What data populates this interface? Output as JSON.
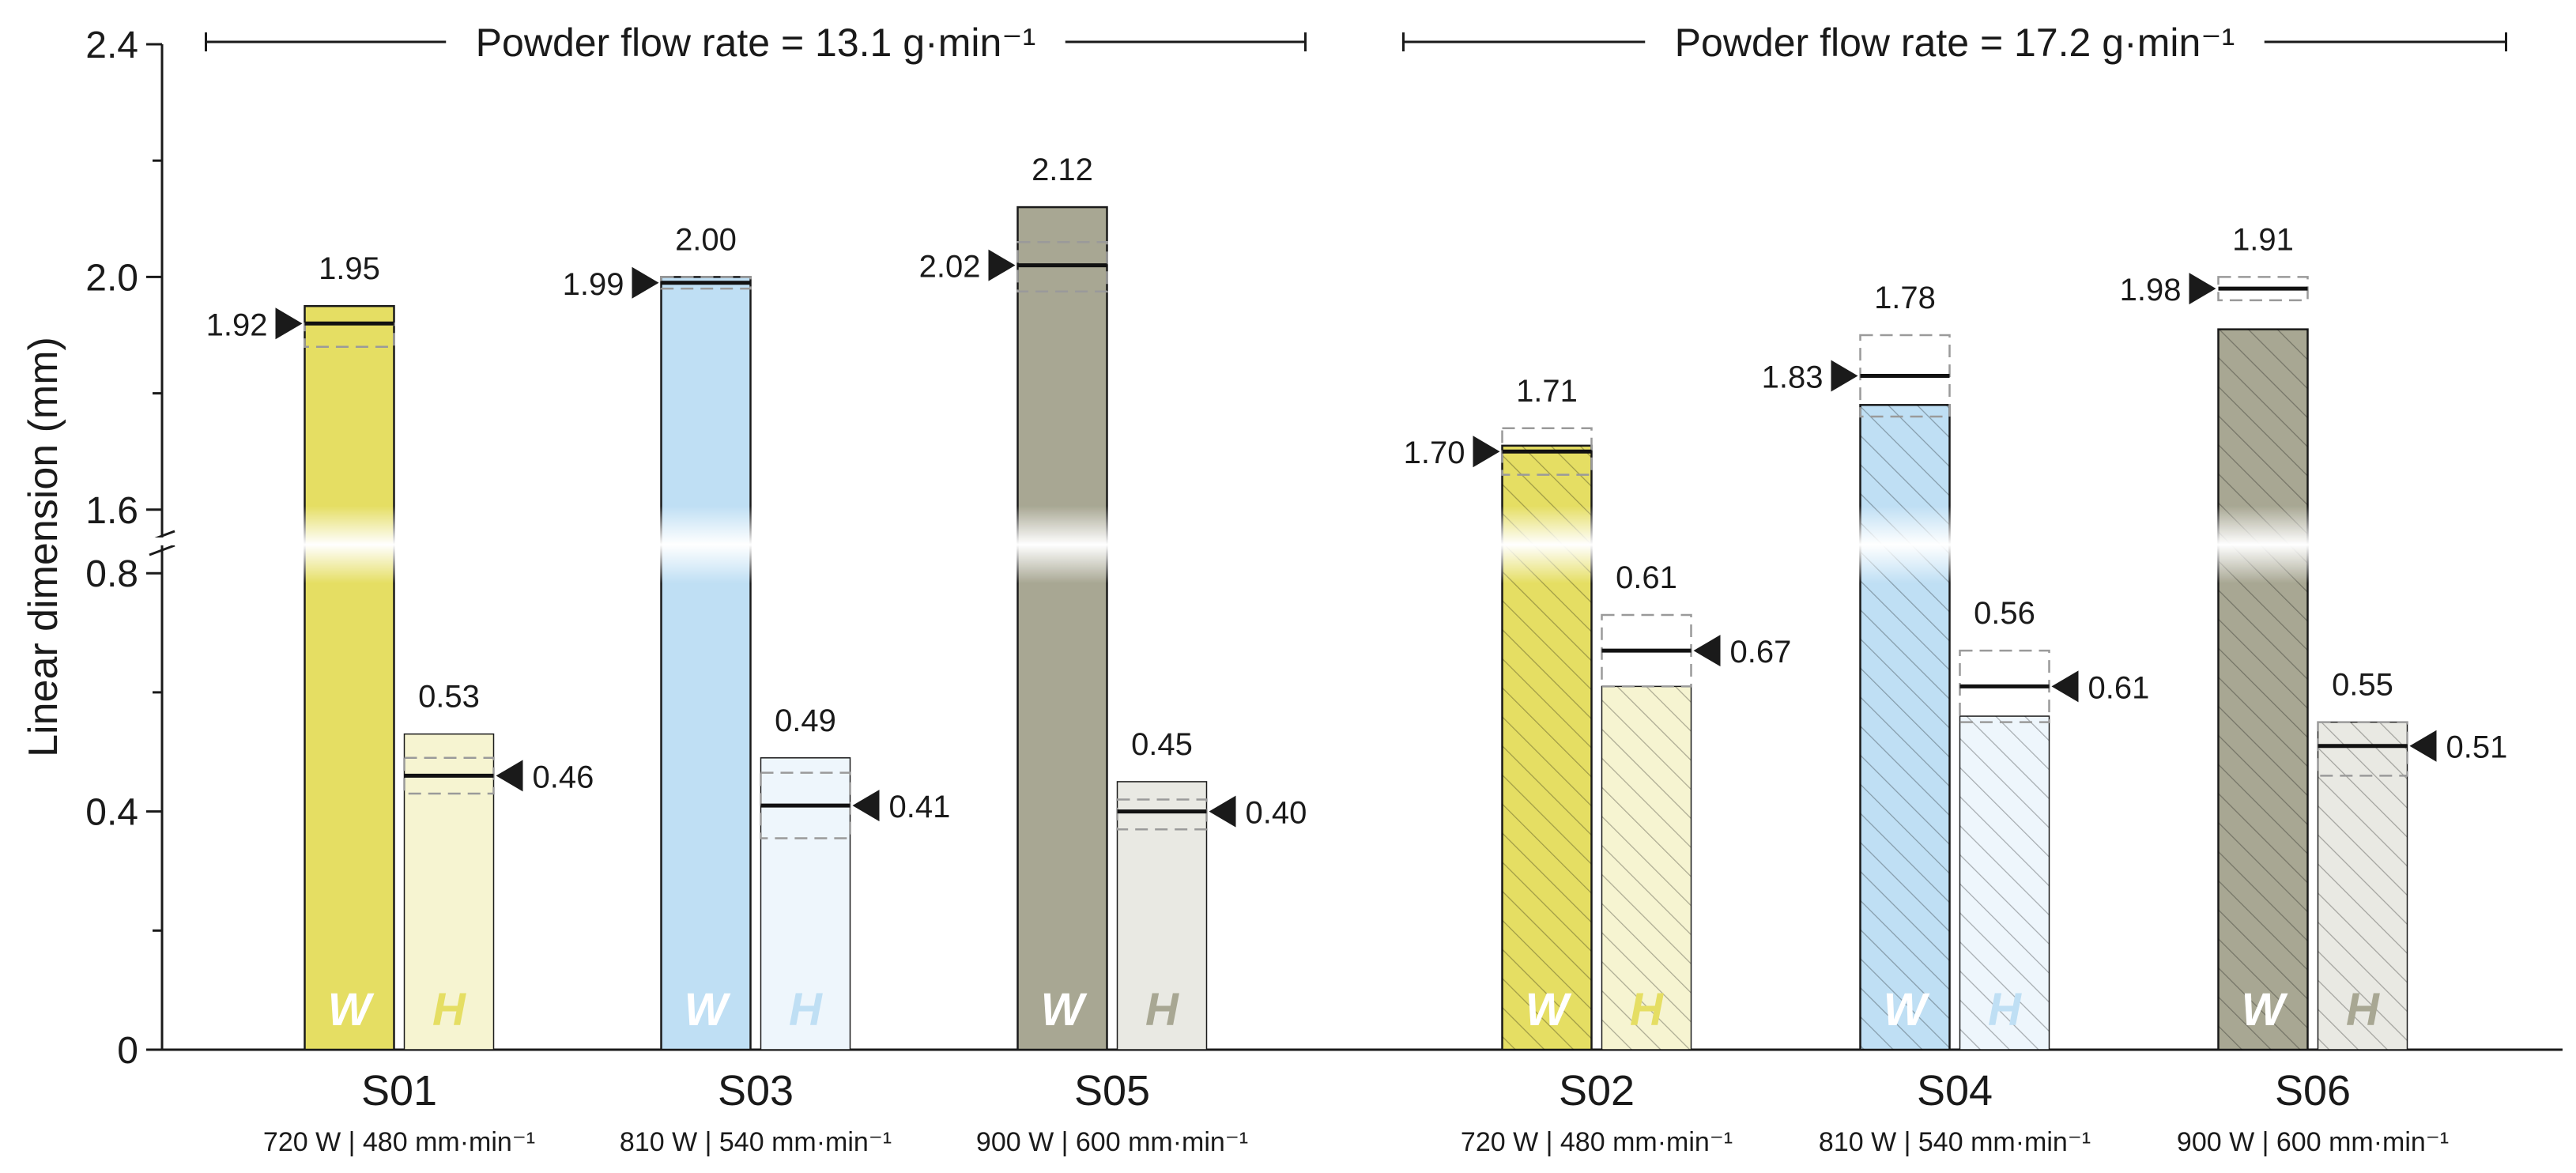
{
  "chart_data": {
    "type": "bar",
    "ylabel": "Linear dimension (mm)",
    "axis": {
      "lower_segment": {
        "range": [
          0,
          0.86
        ],
        "ticks": [
          "0",
          "0.4",
          "0.8"
        ]
      },
      "upper_segment": {
        "range": [
          1.525,
          2.4
        ],
        "ticks": [
          "1.6",
          "2.0",
          "2.4"
        ]
      },
      "break_between": [
        0.86,
        1.525
      ]
    },
    "groups": [
      {
        "label": "Powder flow rate = 13.1 g·min⁻¹",
        "samples": [
          "S01",
          "S03",
          "S05"
        ]
      },
      {
        "label": "Powder flow rate = 17.2 g·min⁻¹",
        "samples": [
          "S02",
          "S04",
          "S06"
        ]
      }
    ],
    "bar_labels": {
      "width": "W",
      "height": "H"
    },
    "samples": [
      {
        "id": "S01",
        "params": "720 W | 480 mm·min⁻¹",
        "color": "#e5de63",
        "light": "#f6f4d1",
        "hatched": false,
        "W": {
          "value": 1.95,
          "label": "1.95",
          "model": 1.92,
          "model_label": "1.92",
          "band": [
            1.88,
            1.92
          ]
        },
        "H": {
          "value": 0.53,
          "label": "0.53",
          "model": 0.46,
          "model_label": "0.46",
          "band": [
            0.43,
            0.49
          ]
        }
      },
      {
        "id": "S03",
        "params": "810 W | 540 mm·min⁻¹",
        "color": "#bfdff4",
        "light": "#eef6fc",
        "hatched": false,
        "W": {
          "value": 2.0,
          "label": "2.00",
          "model": 1.99,
          "model_label": "1.99",
          "band": [
            1.98,
            2.0
          ]
        },
        "H": {
          "value": 0.49,
          "label": "0.49",
          "model": 0.41,
          "model_label": "0.41",
          "band": [
            0.355,
            0.465
          ]
        }
      },
      {
        "id": "S05",
        "params": "900 W | 600 mm·min⁻¹",
        "color": "#a8a793",
        "light": "#e9e9e3",
        "hatched": false,
        "W": {
          "value": 2.12,
          "label": "2.12",
          "model": 2.02,
          "model_label": "2.02",
          "band": [
            1.975,
            2.06
          ]
        },
        "H": {
          "value": 0.45,
          "label": "0.45",
          "model": 0.4,
          "model_label": "0.40",
          "band": [
            0.37,
            0.42
          ]
        }
      },
      {
        "id": "S02",
        "params": "720 W | 480 mm·min⁻¹",
        "color": "#e5de63",
        "light": "#f6f4d1",
        "hatched": true,
        "W": {
          "value": 1.71,
          "label": "1.71",
          "model": 1.7,
          "model_label": "1.70",
          "band": [
            1.66,
            1.74
          ]
        },
        "H": {
          "value": 0.61,
          "label": "0.61",
          "model": 0.67,
          "model_label": "0.67",
          "band": [
            0.61,
            0.73
          ]
        }
      },
      {
        "id": "S04",
        "params": "810 W | 540 mm·min⁻¹",
        "color": "#bfdff4",
        "light": "#eef6fc",
        "hatched": true,
        "W": {
          "value": 1.78,
          "label": "1.78",
          "model": 1.83,
          "model_label": "1.83",
          "band": [
            1.76,
            1.9
          ]
        },
        "H": {
          "value": 0.56,
          "label": "0.56",
          "model": 0.61,
          "model_label": "0.61",
          "band": [
            0.55,
            0.67
          ]
        }
      },
      {
        "id": "S06",
        "params": "900 W | 600 mm·min⁻¹",
        "color": "#a8a793",
        "light": "#e9e9e3",
        "hatched": true,
        "W": {
          "value": 1.91,
          "label": "1.91",
          "model": 1.98,
          "model_label": "1.98",
          "band": [
            1.96,
            2.0
          ]
        },
        "H": {
          "value": 0.55,
          "label": "0.55",
          "model": 0.51,
          "model_label": "0.51",
          "band": [
            0.46,
            0.55
          ]
        }
      }
    ]
  }
}
